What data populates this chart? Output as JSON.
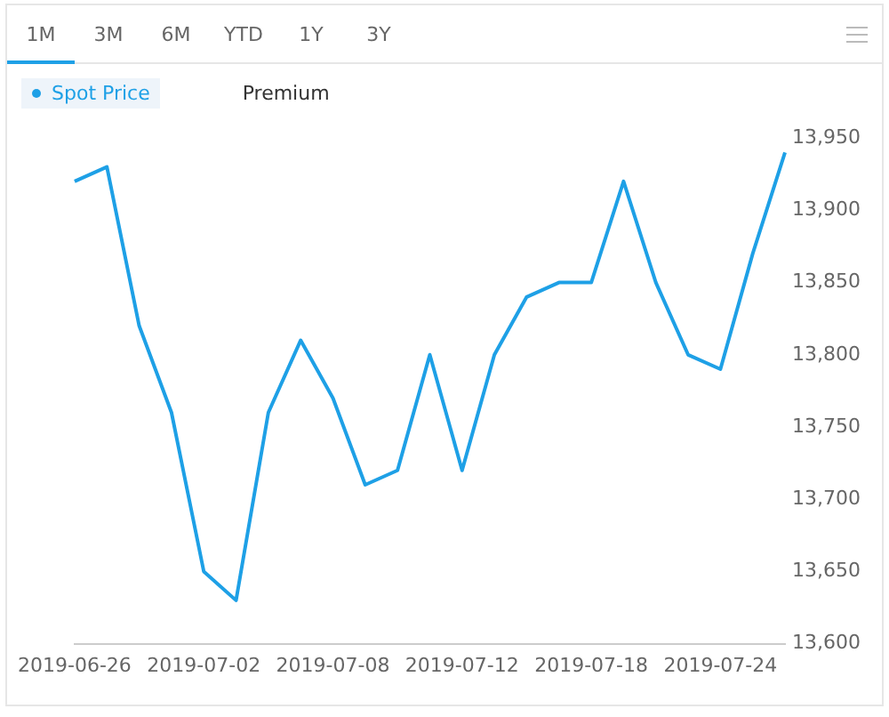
{
  "chart_data": {
    "type": "line",
    "categories": [
      "2019-06-26",
      null,
      null,
      null,
      "2019-07-02",
      null,
      null,
      null,
      "2019-07-08",
      null,
      null,
      null,
      "2019-07-12",
      null,
      null,
      null,
      "2019-07-18",
      null,
      null,
      null,
      "2019-07-24",
      null,
      null
    ],
    "series": [
      {
        "name": "Spot Price",
        "color": "#1ea0e6",
        "values": [
          13920,
          13930,
          13820,
          13760,
          13650,
          13630,
          13760,
          13810,
          13770,
          13710,
          13720,
          13800,
          13720,
          13800,
          13840,
          13850,
          13850,
          13920,
          13850,
          13800,
          13790,
          13870,
          13940
        ]
      },
      {
        "name": "Premium",
        "values": [
          null,
          null,
          null,
          null,
          null,
          null,
          null,
          null,
          null,
          null,
          null,
          null,
          null,
          null,
          null,
          null,
          null,
          null,
          null,
          null,
          null,
          null,
          null
        ]
      }
    ],
    "ylim": [
      13600,
      13950
    ],
    "yticks": [
      {
        "value": 13600,
        "label": "13,600"
      },
      {
        "value": 13650,
        "label": "13,650"
      },
      {
        "value": 13700,
        "label": "13,700"
      },
      {
        "value": 13750,
        "label": "13,750"
      },
      {
        "value": 13800,
        "label": "13,800"
      },
      {
        "value": 13850,
        "label": "13,850"
      },
      {
        "value": 13900,
        "label": "13,900"
      },
      {
        "value": 13950,
        "label": "13,950"
      }
    ],
    "grid": false,
    "legend": "top left",
    "marker": "none",
    "line_style": "solid",
    "annotations": [
      "1M",
      "3M",
      "6M",
      "YTD",
      "1Y",
      "3Y"
    ]
  }
}
